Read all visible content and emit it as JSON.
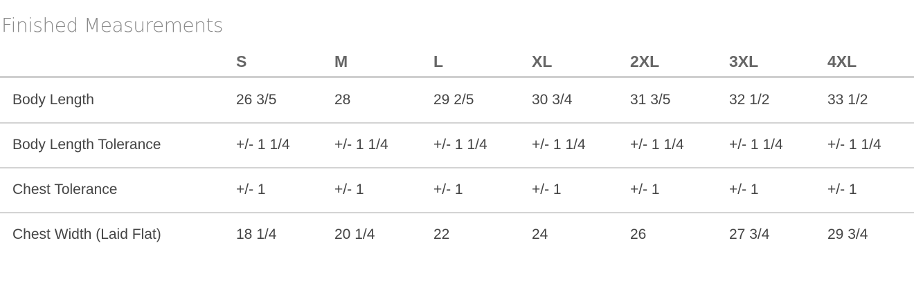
{
  "title": "Finished Measurements",
  "table": {
    "headers": [
      "S",
      "M",
      "L",
      "XL",
      "2XL",
      "3XL",
      "4XL"
    ],
    "rows": [
      {
        "label": "Body Length",
        "values": [
          "26 3/5",
          "28",
          "29 2/5",
          "30 3/4",
          "31 3/5",
          "32 1/2",
          "33 1/2"
        ]
      },
      {
        "label": "Body Length Tolerance",
        "values": [
          "+/- 1 1/4",
          "+/- 1 1/4",
          "+/- 1 1/4",
          "+/- 1 1/4",
          "+/- 1 1/4",
          "+/- 1 1/4",
          "+/- 1 1/4"
        ]
      },
      {
        "label": "Chest Tolerance",
        "values": [
          "+/- 1",
          "+/- 1",
          "+/- 1",
          "+/- 1",
          "+/- 1",
          "+/- 1",
          "+/- 1"
        ]
      },
      {
        "label": "Chest Width (Laid Flat)",
        "values": [
          "18 1/4",
          "20 1/4",
          "22",
          "24",
          "26",
          "27 3/4",
          "29 3/4"
        ]
      }
    ]
  }
}
